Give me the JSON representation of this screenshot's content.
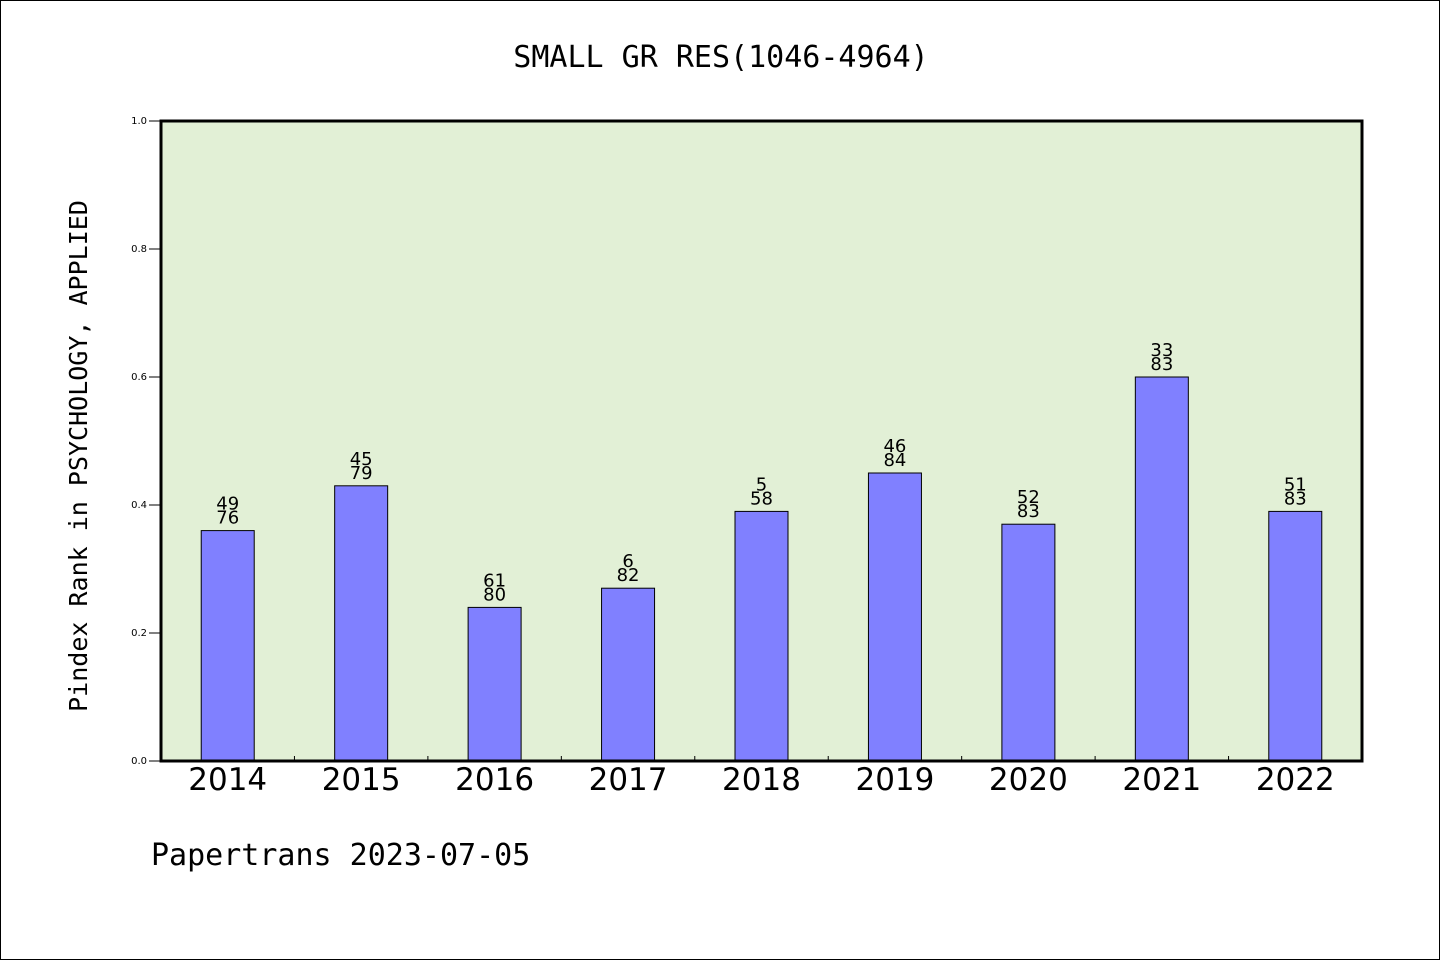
{
  "chart_data": {
    "type": "bar",
    "title": "SMALL GR RES(1046-4964)",
    "ylabel": "Pindex Rank in PSYCHOLOGY, APPLIED",
    "xlabel": "",
    "categories": [
      "2014",
      "2015",
      "2016",
      "2017",
      "2018",
      "2019",
      "2020",
      "2021",
      "2022"
    ],
    "values": [
      0.36,
      0.43,
      0.24,
      0.27,
      0.39,
      0.45,
      0.37,
      0.6,
      0.39
    ],
    "labels_top": [
      "49",
      "45",
      "61",
      "6",
      "5",
      "46",
      "52",
      "33",
      "51"
    ],
    "labels_bottom": [
      "76",
      "79",
      "80",
      "82",
      "58",
      "84",
      "83",
      "83",
      "83"
    ],
    "ylim": [
      0,
      1.0
    ],
    "yticks": [
      "0.0",
      "0.2",
      "0.4",
      "0.6",
      "0.8",
      "1.0"
    ],
    "grid": false,
    "colors": {
      "bar": "#8080ff",
      "plot_background": "#e2f0d6",
      "bar_edge": "#000000"
    }
  },
  "footer": "Papertrans 2023-07-05"
}
